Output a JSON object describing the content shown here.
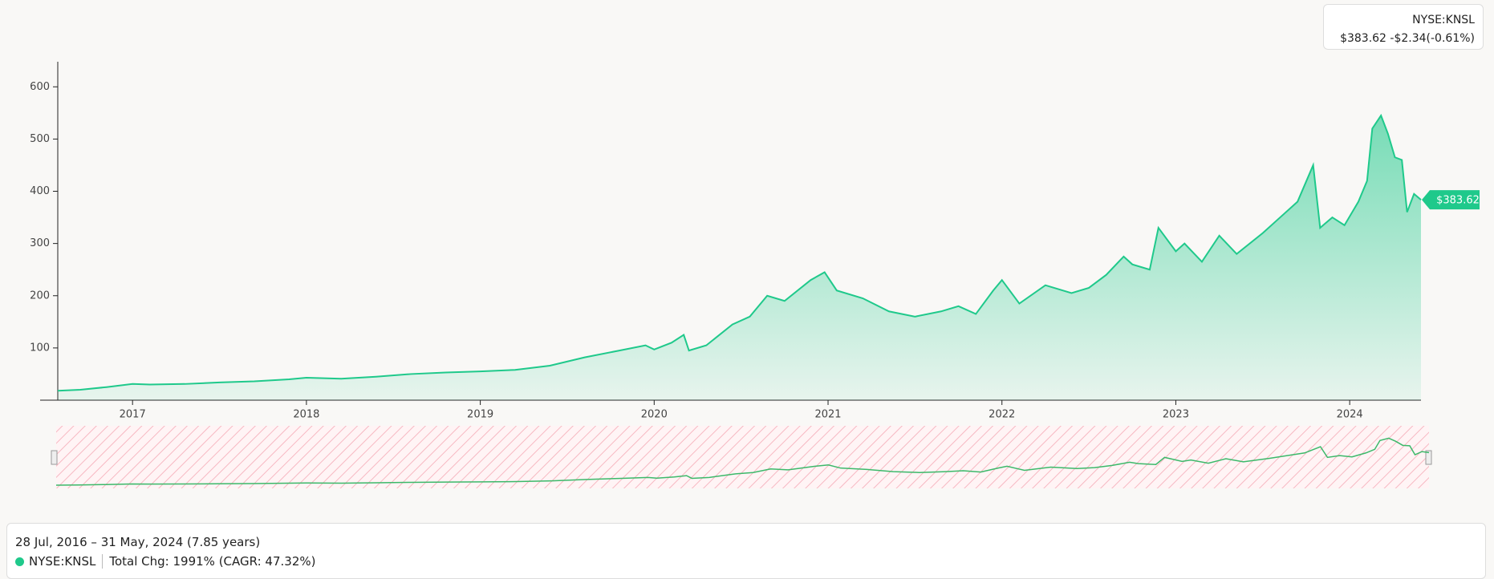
{
  "header": {
    "ticker": "NYSE:KNSL",
    "quote": "$383.62 -$2.34(-0.61%)"
  },
  "chart_data": {
    "type": "area",
    "x": [
      2016.57,
      2016.7,
      2016.85,
      2017.0,
      2017.1,
      2017.3,
      2017.5,
      2017.7,
      2017.9,
      2018.0,
      2018.2,
      2018.4,
      2018.6,
      2018.8,
      2019.0,
      2019.2,
      2019.4,
      2019.6,
      2019.8,
      2019.95,
      2020.0,
      2020.1,
      2020.17,
      2020.2,
      2020.3,
      2020.45,
      2020.55,
      2020.65,
      2020.75,
      2020.9,
      2020.98,
      2021.05,
      2021.2,
      2021.35,
      2021.5,
      2021.65,
      2021.75,
      2021.85,
      2021.95,
      2022.0,
      2022.1,
      2022.25,
      2022.4,
      2022.5,
      2022.6,
      2022.7,
      2022.75,
      2022.85,
      2022.9,
      2023.0,
      2023.05,
      2023.15,
      2023.25,
      2023.35,
      2023.5,
      2023.6,
      2023.7,
      2023.79,
      2023.83,
      2023.9,
      2023.97,
      2024.05,
      2024.1,
      2024.13,
      2024.18,
      2024.22,
      2024.26,
      2024.3,
      2024.33,
      2024.37,
      2024.41
    ],
    "values": [
      18,
      20,
      25,
      31,
      30,
      31,
      34,
      36,
      40,
      43,
      41,
      45,
      50,
      53,
      55,
      58,
      66,
      82,
      95,
      105,
      97,
      110,
      125,
      95,
      105,
      145,
      160,
      200,
      190,
      230,
      245,
      210,
      195,
      170,
      160,
      170,
      180,
      165,
      210,
      230,
      185,
      220,
      205,
      215,
      240,
      275,
      260,
      250,
      330,
      285,
      300,
      265,
      315,
      280,
      320,
      350,
      380,
      450,
      330,
      350,
      335,
      380,
      420,
      520,
      545,
      510,
      465,
      460,
      360,
      395,
      383.62
    ],
    "color": "#1fc98b",
    "xlim": [
      2016.57,
      2024.41
    ],
    "xticks": [
      2017,
      2018,
      2019,
      2020,
      2021,
      2022,
      2023,
      2024
    ],
    "ylim": [
      0,
      648
    ],
    "yticks": [
      100,
      200,
      300,
      400,
      500,
      600
    ],
    "last_price_label": "$383.62"
  },
  "footer": {
    "range": "28 Jul, 2016 – 31 May, 2024 (7.85 years)",
    "ticker": "NYSE:KNSL",
    "change": "Total Chg: 1991% (CAGR: 47.32%)"
  }
}
